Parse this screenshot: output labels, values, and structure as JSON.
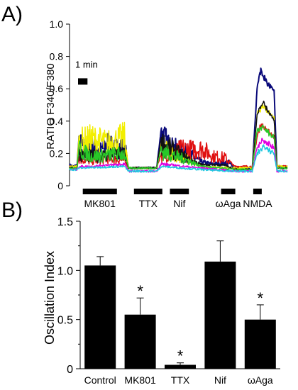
{
  "panel_a_label": "A)",
  "panel_b_label": "B)",
  "chart_data": [
    {
      "type": "line",
      "panel": "A",
      "ylabel": "RATIO F340/F380",
      "ylim": [
        0,
        1.0
      ],
      "yticks": [
        "0",
        "0.2",
        "0.4",
        "0.6",
        "0.8",
        "1.0"
      ],
      "x_unit": "min",
      "scale_bar_label": "1 min",
      "scale_bar_minutes": 1,
      "time_range_min": [
        0,
        23
      ],
      "drug_bars": [
        {
          "label": "MK801",
          "start": 1.4,
          "end": 5.0
        },
        {
          "label": "TTX",
          "start": 6.8,
          "end": 9.8
        },
        {
          "label": "Nif",
          "start": 10.6,
          "end": 12.6
        },
        {
          "label": "ωAga",
          "start": 16.0,
          "end": 17.5
        },
        {
          "label": "NMDA",
          "start": 19.4,
          "end": 20.3
        }
      ],
      "series": [
        {
          "color": "#0a0a7a",
          "values": [
            [
              0,
              0.13
            ],
            [
              0.4,
              0.12
            ],
            [
              0.8,
              0.13
            ],
            [
              1.0,
              0.3
            ],
            [
              1.6,
              0.25
            ],
            [
              2.4,
              0.27
            ],
            [
              3.2,
              0.24
            ],
            [
              4.0,
              0.3
            ],
            [
              4.6,
              0.25
            ],
            [
              5.2,
              0.27
            ],
            [
              5.8,
              0.3
            ],
            [
              6.2,
              0.11
            ],
            [
              7.8,
              0.11
            ],
            [
              9.2,
              0.11
            ],
            [
              9.7,
              0.36
            ],
            [
              10.6,
              0.27
            ],
            [
              12.0,
              0.24
            ],
            [
              13.0,
              0.2
            ],
            [
              14.0,
              0.15
            ],
            [
              15.2,
              0.14
            ],
            [
              16.8,
              0.15
            ],
            [
              17.4,
              0.11
            ],
            [
              18.6,
              0.11
            ],
            [
              19.3,
              0.11
            ],
            [
              19.8,
              0.6
            ],
            [
              20.2,
              0.72
            ],
            [
              20.8,
              0.64
            ],
            [
              21.6,
              0.58
            ],
            [
              21.9,
              0.12
            ],
            [
              23.0,
              0.12
            ]
          ]
        },
        {
          "color": "#e01010",
          "values": [
            [
              0,
              0.12
            ],
            [
              0.8,
              0.12
            ],
            [
              1.0,
              0.18
            ],
            [
              2.4,
              0.16
            ],
            [
              4.0,
              0.18
            ],
            [
              5.8,
              0.17
            ],
            [
              6.2,
              0.11
            ],
            [
              9.2,
              0.11
            ],
            [
              9.7,
              0.2
            ],
            [
              10.6,
              0.22
            ],
            [
              12.0,
              0.26
            ],
            [
              13.0,
              0.25
            ],
            [
              14.0,
              0.26
            ],
            [
              15.2,
              0.2
            ],
            [
              16.4,
              0.19
            ],
            [
              17.4,
              0.12
            ],
            [
              19.3,
              0.12
            ],
            [
              19.8,
              0.3
            ],
            [
              20.2,
              0.38
            ],
            [
              21.6,
              0.3
            ],
            [
              21.9,
              0.12
            ],
            [
              23.0,
              0.12
            ]
          ]
        },
        {
          "color": "#f2ee00",
          "values": [
            [
              0,
              0.12
            ],
            [
              0.8,
              0.12
            ],
            [
              1.0,
              0.31
            ],
            [
              2.4,
              0.33
            ],
            [
              4.0,
              0.3
            ],
            [
              5.8,
              0.34
            ],
            [
              6.2,
              0.11
            ],
            [
              9.2,
              0.11
            ],
            [
              9.7,
              0.26
            ],
            [
              12.0,
              0.19
            ],
            [
              14.0,
              0.12
            ],
            [
              17.4,
              0.11
            ],
            [
              19.3,
              0.11
            ],
            [
              19.8,
              0.44
            ],
            [
              20.4,
              0.5
            ],
            [
              21.6,
              0.42
            ],
            [
              21.9,
              0.12
            ],
            [
              23.0,
              0.12
            ]
          ]
        },
        {
          "color": "#111111",
          "values": [
            [
              0,
              0.11
            ],
            [
              0.8,
              0.11
            ],
            [
              1.0,
              0.22
            ],
            [
              2.4,
              0.2
            ],
            [
              5.8,
              0.22
            ],
            [
              6.2,
              0.11
            ],
            [
              9.2,
              0.11
            ],
            [
              9.7,
              0.3
            ],
            [
              12.0,
              0.2
            ],
            [
              14.0,
              0.13
            ],
            [
              16.4,
              0.13
            ],
            [
              17.4,
              0.1
            ],
            [
              19.3,
              0.1
            ],
            [
              19.8,
              0.44
            ],
            [
              20.4,
              0.52
            ],
            [
              21.6,
              0.4
            ],
            [
              21.9,
              0.11
            ],
            [
              23.0,
              0.11
            ]
          ]
        },
        {
          "color": "#28c828",
          "values": [
            [
              0,
              0.11
            ],
            [
              0.8,
              0.11
            ],
            [
              1.0,
              0.25
            ],
            [
              2.4,
              0.2
            ],
            [
              5.8,
              0.22
            ],
            [
              6.2,
              0.11
            ],
            [
              9.2,
              0.11
            ],
            [
              9.7,
              0.24
            ],
            [
              12.0,
              0.18
            ],
            [
              14.0,
              0.12
            ],
            [
              17.4,
              0.1
            ],
            [
              19.3,
              0.1
            ],
            [
              19.8,
              0.34
            ],
            [
              20.4,
              0.36
            ],
            [
              21.6,
              0.3
            ],
            [
              21.9,
              0.11
            ],
            [
              23.0,
              0.11
            ]
          ]
        },
        {
          "color": "#e000e0",
          "values": [
            [
              0,
              0.1
            ],
            [
              0.8,
              0.1
            ],
            [
              1.0,
              0.12
            ],
            [
              2.4,
              0.12
            ],
            [
              5.8,
              0.14
            ],
            [
              6.2,
              0.09
            ],
            [
              9.2,
              0.09
            ],
            [
              9.7,
              0.14
            ],
            [
              12.0,
              0.12
            ],
            [
              14.0,
              0.11
            ],
            [
              17.4,
              0.09
            ],
            [
              19.3,
              0.09
            ],
            [
              19.8,
              0.24
            ],
            [
              20.4,
              0.28
            ],
            [
              21.6,
              0.24
            ],
            [
              21.9,
              0.09
            ],
            [
              23.0,
              0.09
            ]
          ]
        },
        {
          "color": "#20c8e0",
          "values": [
            [
              0,
              0.1
            ],
            [
              0.8,
              0.1
            ],
            [
              1.0,
              0.11
            ],
            [
              5.8,
              0.12
            ],
            [
              6.2,
              0.09
            ],
            [
              9.2,
              0.09
            ],
            [
              9.7,
              0.12
            ],
            [
              14.0,
              0.1
            ],
            [
              17.4,
              0.09
            ],
            [
              19.3,
              0.09
            ],
            [
              19.8,
              0.2
            ],
            [
              20.4,
              0.24
            ],
            [
              21.6,
              0.2
            ],
            [
              21.9,
              0.09
            ],
            [
              23.0,
              0.09
            ]
          ]
        }
      ]
    },
    {
      "type": "bar",
      "panel": "B",
      "ylabel": "Oscillation Index",
      "ylim": [
        0,
        1.5
      ],
      "yticks": [
        "0",
        "0.5",
        "1.0",
        "1.5"
      ],
      "categories": [
        "Control",
        "MK801",
        "TTX",
        "Nif",
        "ωAga"
      ],
      "values": [
        1.05,
        0.55,
        0.04,
        1.09,
        0.5
      ],
      "errors": [
        0.09,
        0.17,
        0.02,
        0.21,
        0.15
      ],
      "significance": [
        "",
        "*",
        "*",
        "",
        "*"
      ]
    }
  ]
}
